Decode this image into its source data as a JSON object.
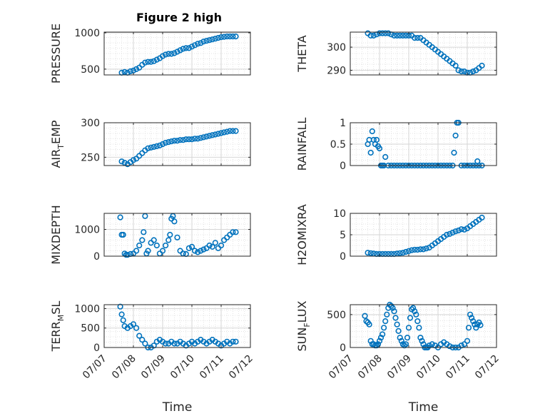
{
  "figure_title": "Figure 2 high",
  "chart_data": [
    {
      "type": "scatter",
      "ylabel": "PRESSURE",
      "ylim": [
        420,
        1010
      ],
      "yticks": [
        {
          "v": 500,
          "label": "500"
        },
        {
          "v": 1000,
          "label": "1000"
        }
      ],
      "xlim": [
        0,
        5
      ],
      "x_ticklabels": [],
      "grid": true,
      "series": [
        {
          "x": [
            0.6,
            0.7,
            0.8,
            0.9,
            1.0,
            1.1,
            1.2,
            1.3,
            1.4,
            1.5,
            1.6,
            1.7,
            1.8,
            1.9,
            2.0,
            2.1,
            2.2,
            2.3,
            2.4,
            2.5,
            2.6,
            2.7,
            2.8,
            2.9,
            3.0,
            3.1,
            3.2,
            3.3,
            3.4,
            3.5,
            3.6,
            3.7,
            3.8,
            3.9,
            4.0,
            4.1,
            4.2,
            4.3,
            4.4,
            4.5
          ],
          "y": [
            450,
            460,
            450,
            470,
            480,
            500,
            520,
            560,
            590,
            600,
            600,
            610,
            630,
            650,
            680,
            700,
            710,
            710,
            720,
            740,
            760,
            780,
            790,
            790,
            810,
            830,
            850,
            860,
            880,
            890,
            900,
            910,
            920,
            930,
            940,
            945,
            950,
            950,
            950,
            950
          ]
        }
      ]
    },
    {
      "type": "scatter",
      "ylabel": "THETA",
      "ylim": [
        288,
        306.5
      ],
      "yticks": [
        {
          "v": 290,
          "label": "290"
        },
        {
          "v": 300,
          "label": "300"
        }
      ],
      "xlim": [
        0,
        5
      ],
      "x_ticklabels": [],
      "grid": true,
      "series": [
        {
          "x": [
            0.6,
            0.7,
            0.8,
            0.9,
            1.0,
            1.1,
            1.2,
            1.3,
            1.4,
            1.5,
            1.6,
            1.7,
            1.8,
            1.9,
            2.0,
            2.1,
            2.2,
            2.3,
            2.4,
            2.5,
            2.6,
            2.7,
            2.8,
            2.9,
            3.0,
            3.1,
            3.2,
            3.3,
            3.4,
            3.5,
            3.6,
            3.7,
            3.8,
            3.9,
            4.0,
            4.1,
            4.2,
            4.3,
            4.4,
            4.5
          ],
          "y": [
            306,
            305,
            305,
            305.5,
            306,
            306,
            306,
            306,
            305.5,
            305,
            305,
            305,
            305,
            305,
            305,
            305,
            304,
            304,
            304,
            303,
            302,
            301,
            300,
            299,
            298,
            297,
            296,
            295,
            294,
            293,
            292,
            290,
            289.5,
            289.5,
            289,
            289,
            289.5,
            290,
            291,
            292
          ]
        }
      ]
    },
    {
      "type": "scatter",
      "ylabel": "AIR_TEMP",
      "ylim": [
        238,
        300
      ],
      "yticks": [
        {
          "v": 250,
          "label": "250"
        },
        {
          "v": 300,
          "label": "300"
        }
      ],
      "xlim": [
        0,
        5
      ],
      "x_ticklabels": [],
      "grid": true,
      "series": [
        {
          "x": [
            0.6,
            0.7,
            0.8,
            0.9,
            1.0,
            1.1,
            1.2,
            1.3,
            1.4,
            1.5,
            1.6,
            1.7,
            1.8,
            1.9,
            2.0,
            2.1,
            2.2,
            2.3,
            2.4,
            2.5,
            2.6,
            2.7,
            2.8,
            2.9,
            3.0,
            3.1,
            3.2,
            3.3,
            3.4,
            3.5,
            3.6,
            3.7,
            3.8,
            3.9,
            4.0,
            4.1,
            4.2,
            4.3,
            4.4,
            4.5
          ],
          "y": [
            244,
            242,
            240,
            243,
            246,
            248,
            252,
            256,
            260,
            263,
            264,
            265,
            266,
            267,
            269,
            271,
            272,
            273,
            274,
            274,
            275,
            275,
            276,
            276,
            276,
            277,
            277,
            278,
            279,
            280,
            281,
            282,
            283,
            284,
            285,
            286,
            287,
            288,
            288,
            288
          ]
        }
      ]
    },
    {
      "type": "scatter",
      "ylabel": "RAINFALL",
      "ylim": [
        0,
        1
      ],
      "yticks": [
        {
          "v": 0,
          "label": "0"
        },
        {
          "v": 0.5,
          "label": "0.5"
        },
        {
          "v": 1,
          "label": "1"
        }
      ],
      "xlim": [
        0,
        5
      ],
      "x_ticklabels": [],
      "grid": true,
      "series": [
        {
          "x": [
            0.6,
            0.65,
            0.7,
            0.75,
            0.8,
            0.85,
            0.9,
            0.95,
            1.0,
            1.05,
            1.1,
            1.15,
            1.2,
            1.3,
            1.4,
            1.5,
            1.6,
            1.7,
            1.8,
            1.9,
            2.0,
            2.1,
            2.2,
            2.3,
            2.4,
            2.5,
            2.6,
            2.7,
            2.8,
            2.9,
            3.0,
            3.1,
            3.2,
            3.3,
            3.4,
            3.5,
            3.55,
            3.6,
            3.65,
            3.7,
            3.8,
            3.9,
            4.0,
            4.1,
            4.2,
            4.3,
            4.35,
            4.4,
            4.5
          ],
          "y": [
            0.5,
            0.6,
            0.3,
            0.8,
            0.6,
            0.5,
            0.6,
            0.45,
            0.4,
            0,
            0,
            0,
            0.2,
            0,
            0,
            0,
            0,
            0,
            0,
            0,
            0,
            0,
            0,
            0,
            0,
            0,
            0,
            0,
            0,
            0,
            0,
            0,
            0,
            0,
            0,
            0,
            0.3,
            0.7,
            1.0,
            1.0,
            0,
            0,
            0,
            0,
            0,
            0,
            0.1,
            0,
            0
          ]
        }
      ]
    },
    {
      "type": "scatter",
      "ylabel": "MIXDEPTH",
      "ylim": [
        0,
        1600
      ],
      "yticks": [
        {
          "v": 0,
          "label": "0"
        },
        {
          "v": 1000,
          "label": "1000"
        }
      ],
      "xlim": [
        0,
        5
      ],
      "x_ticklabels": [],
      "grid": true,
      "series": [
        {
          "x": [
            0.55,
            0.6,
            0.65,
            0.7,
            0.75,
            0.8,
            0.9,
            1.0,
            1.1,
            1.2,
            1.3,
            1.35,
            1.4,
            1.45,
            1.5,
            1.6,
            1.7,
            1.8,
            1.9,
            2.0,
            2.1,
            2.2,
            2.25,
            2.3,
            2.35,
            2.4,
            2.5,
            2.6,
            2.7,
            2.8,
            2.9,
            3.0,
            3.1,
            3.2,
            3.3,
            3.4,
            3.5,
            3.6,
            3.7,
            3.8,
            3.9,
            4.0,
            4.1,
            4.2,
            4.3,
            4.4,
            4.5
          ],
          "y": [
            1450,
            800,
            800,
            100,
            50,
            50,
            80,
            100,
            200,
            400,
            600,
            900,
            1500,
            100,
            200,
            500,
            600,
            400,
            100,
            200,
            400,
            600,
            800,
            1400,
            1500,
            1300,
            700,
            200,
            100,
            80,
            300,
            350,
            200,
            150,
            200,
            250,
            300,
            400,
            350,
            500,
            300,
            400,
            600,
            700,
            800,
            900,
            900
          ]
        }
      ]
    },
    {
      "type": "scatter",
      "ylabel": "H2OMIXRA",
      "ylim": [
        0,
        10
      ],
      "yticks": [
        {
          "v": 0,
          "label": "0"
        },
        {
          "v": 5,
          "label": "5"
        },
        {
          "v": 10,
          "label": "10"
        }
      ],
      "xlim": [
        0,
        5
      ],
      "x_ticklabels": [],
      "grid": true,
      "series": [
        {
          "x": [
            0.6,
            0.7,
            0.8,
            0.9,
            1.0,
            1.1,
            1.2,
            1.3,
            1.4,
            1.5,
            1.6,
            1.7,
            1.8,
            1.9,
            2.0,
            2.1,
            2.2,
            2.3,
            2.4,
            2.5,
            2.6,
            2.7,
            2.8,
            2.9,
            3.0,
            3.1,
            3.2,
            3.3,
            3.4,
            3.5,
            3.6,
            3.7,
            3.8,
            3.9,
            4.0,
            4.1,
            4.2,
            4.3,
            4.4,
            4.5
          ],
          "y": [
            0.8,
            0.7,
            0.6,
            0.5,
            0.5,
            0.5,
            0.5,
            0.5,
            0.5,
            0.5,
            0.6,
            0.7,
            0.8,
            1.0,
            1.2,
            1.4,
            1.5,
            1.5,
            1.6,
            1.6,
            1.8,
            2.0,
            2.5,
            3.0,
            3.5,
            4.0,
            4.5,
            5.0,
            5.2,
            5.5,
            5.8,
            6.0,
            6.3,
            6.2,
            6.5,
            7.0,
            7.5,
            8.0,
            8.5,
            9.0
          ]
        }
      ]
    },
    {
      "type": "scatter",
      "ylabel": "TERR_MSL",
      "ylim": [
        0,
        1100
      ],
      "yticks": [
        {
          "v": 0,
          "label": "0"
        },
        {
          "v": 500,
          "label": "500"
        },
        {
          "v": 1000,
          "label": "1000"
        }
      ],
      "xlim": [
        0,
        5
      ],
      "x_ticklabels": [
        "07/07",
        "07/08",
        "07/09",
        "07/10",
        "07/11",
        "07/12"
      ],
      "xlabel": "Time",
      "grid": true,
      "series": [
        {
          "x": [
            0.55,
            0.6,
            0.65,
            0.7,
            0.8,
            0.9,
            1.0,
            1.1,
            1.2,
            1.3,
            1.4,
            1.5,
            1.6,
            1.7,
            1.8,
            1.9,
            2.0,
            2.1,
            2.2,
            2.3,
            2.4,
            2.5,
            2.6,
            2.7,
            2.8,
            2.9,
            3.0,
            3.1,
            3.2,
            3.3,
            3.4,
            3.5,
            3.6,
            3.7,
            3.8,
            3.9,
            4.0,
            4.1,
            4.2,
            4.3,
            4.4,
            4.5
          ],
          "y": [
            1050,
            850,
            700,
            550,
            500,
            550,
            600,
            500,
            300,
            200,
            100,
            0,
            0,
            50,
            150,
            200,
            150,
            100,
            100,
            150,
            100,
            100,
            150,
            100,
            50,
            100,
            150,
            100,
            150,
            200,
            150,
            100,
            150,
            200,
            150,
            100,
            50,
            100,
            150,
            100,
            150,
            150
          ]
        }
      ]
    },
    {
      "type": "scatter",
      "ylabel": "SUN_FLUX",
      "ylim": [
        0,
        650
      ],
      "yticks": [
        {
          "v": 0,
          "label": "0"
        },
        {
          "v": 500,
          "label": "500"
        }
      ],
      "xlim": [
        0,
        5
      ],
      "x_ticklabels": [
        "07/07",
        "07/08",
        "07/09",
        "07/10",
        "07/11",
        "07/12"
      ],
      "xlabel": "Time",
      "grid": true,
      "series": [
        {
          "x": [
            0.5,
            0.55,
            0.6,
            0.65,
            0.7,
            0.75,
            0.8,
            0.85,
            0.9,
            0.95,
            1.0,
            1.05,
            1.1,
            1.15,
            1.2,
            1.25,
            1.3,
            1.35,
            1.4,
            1.45,
            1.5,
            1.55,
            1.6,
            1.65,
            1.7,
            1.75,
            1.8,
            1.85,
            1.9,
            1.95,
            2.0,
            2.05,
            2.1,
            2.15,
            2.2,
            2.25,
            2.3,
            2.35,
            2.4,
            2.45,
            2.5,
            2.55,
            2.6,
            2.65,
            2.7,
            2.8,
            2.9,
            3.0,
            3.1,
            3.2,
            3.3,
            3.4,
            3.5,
            3.6,
            3.7,
            3.8,
            3.9,
            4.0,
            4.05,
            4.1,
            4.15,
            4.2,
            4.25,
            4.3,
            4.35,
            4.4,
            4.45
          ],
          "y": [
            480,
            400,
            380,
            350,
            100,
            50,
            50,
            30,
            30,
            50,
            100,
            150,
            200,
            300,
            400,
            500,
            600,
            650,
            630,
            600,
            550,
            450,
            350,
            250,
            150,
            100,
            50,
            30,
            50,
            150,
            300,
            450,
            580,
            600,
            550,
            500,
            400,
            300,
            150,
            100,
            50,
            0,
            0,
            0,
            30,
            50,
            30,
            0,
            50,
            80,
            50,
            20,
            0,
            0,
            0,
            30,
            50,
            100,
            300,
            500,
            450,
            400,
            350,
            300,
            350,
            380,
            340
          ]
        }
      ]
    }
  ]
}
